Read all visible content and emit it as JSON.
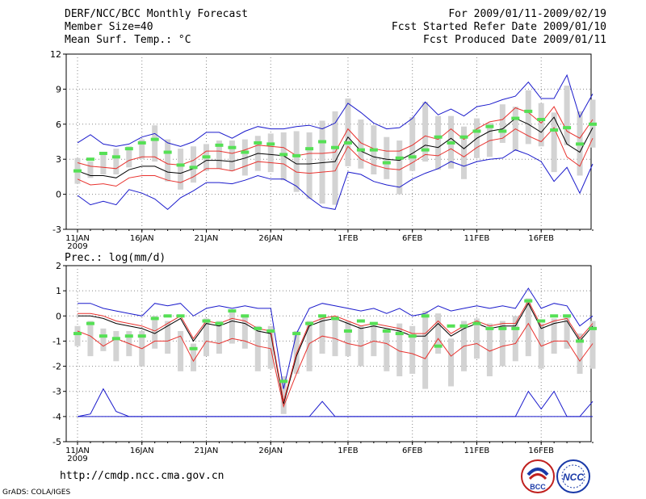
{
  "header": {
    "title": "DERF/NCC/BCC Monthly Forecast",
    "member_size": "Member Size=40",
    "variable": "Mean Surf. Temp.: °C",
    "period": "For 2009/01/11-2009/02/19",
    "started": "Fcst Started Refer Date 2009/01/10",
    "produced": "Fcst Produced Date 2009/01/11"
  },
  "footer": {
    "url": "http://cmdp.ncc.cma.gov.cn",
    "grads": "GrADS: COLA/IGES",
    "logo_bcc_text": "BCC",
    "logo_ncc_text": "NCC"
  },
  "colors": {
    "ensemble_mean": "#000000",
    "spread": "#e8322e",
    "envelope": "#1a1acc",
    "member_box": "#d3d3d3",
    "observed": "#55e055",
    "grid": "#888888"
  },
  "chart_data": [
    {
      "type": "line",
      "title": "Mean Surf. Temp.: °C",
      "x_start_label": "11JAN",
      "x_year_label": "2009",
      "x_tick_labels": [
        "11JAN",
        "16JAN",
        "21JAN",
        "26JAN",
        "1FEB",
        "6FEB",
        "11FEB",
        "16FEB"
      ],
      "x_tick_days": [
        0,
        5,
        10,
        15,
        21,
        26,
        31,
        36
      ],
      "ylim": [
        -3,
        12
      ],
      "y_ticks": [
        -3,
        0,
        3,
        6,
        9,
        12
      ],
      "days": 40,
      "series": [
        {
          "name": "ensemble mean",
          "values": [
            2.0,
            1.6,
            1.6,
            1.4,
            2.1,
            2.4,
            2.4,
            1.9,
            1.8,
            2.2,
            2.9,
            2.9,
            2.8,
            3.1,
            3.5,
            3.4,
            3.3,
            2.6,
            2.6,
            2.7,
            2.8,
            4.9,
            3.7,
            3.2,
            3.0,
            2.9,
            3.5,
            4.2,
            4.0,
            4.8,
            3.9,
            4.8,
            5.4,
            5.6,
            6.5,
            6.0,
            5.3,
            6.6,
            4.3,
            3.6,
            5.7
          ]
        },
        {
          "name": "upper spread",
          "values": [
            2.7,
            2.4,
            2.3,
            2.2,
            2.9,
            3.2,
            3.2,
            2.6,
            2.5,
            2.9,
            3.7,
            3.7,
            3.5,
            3.8,
            4.2,
            4.1,
            4.0,
            3.3,
            3.5,
            3.5,
            3.6,
            5.6,
            4.4,
            3.9,
            3.7,
            3.7,
            4.2,
            5.0,
            4.7,
            5.6,
            4.7,
            5.6,
            6.2,
            6.4,
            7.4,
            7.0,
            6.1,
            7.5,
            5.4,
            4.8,
            6.4
          ]
        },
        {
          "name": "lower spread",
          "values": [
            1.3,
            0.8,
            0.9,
            0.7,
            1.4,
            1.6,
            1.6,
            1.2,
            1.0,
            1.5,
            2.2,
            2.2,
            2.0,
            2.4,
            2.8,
            2.7,
            2.6,
            1.9,
            1.8,
            1.9,
            2.0,
            4.1,
            3.0,
            2.5,
            2.2,
            2.1,
            2.7,
            3.4,
            3.3,
            3.9,
            3.2,
            4.0,
            4.6,
            4.8,
            5.6,
            5.0,
            4.5,
            5.7,
            3.2,
            2.4,
            4.8
          ]
        },
        {
          "name": "upper envelope",
          "values": [
            4.4,
            5.1,
            4.3,
            4.1,
            4.3,
            4.9,
            5.2,
            4.4,
            4.1,
            4.5,
            5.3,
            5.3,
            4.8,
            5.4,
            5.8,
            5.6,
            5.6,
            5.8,
            5.9,
            5.6,
            6.1,
            7.8,
            7.0,
            6.1,
            5.6,
            5.7,
            6.5,
            7.9,
            6.8,
            7.3,
            6.7,
            7.5,
            7.7,
            8.1,
            8.4,
            9.6,
            8.2,
            8.2,
            10.2,
            6.6,
            8.6
          ]
        },
        {
          "name": "lower envelope",
          "values": [
            -0.1,
            -0.9,
            -0.6,
            -0.9,
            0.4,
            0.1,
            -0.4,
            -1.3,
            -0.3,
            0.3,
            1.0,
            1.0,
            0.9,
            1.2,
            1.6,
            1.3,
            1.3,
            0.7,
            -0.3,
            -1.1,
            -1.3,
            1.9,
            1.7,
            1.1,
            0.8,
            0.6,
            1.3,
            1.8,
            2.2,
            2.8,
            2.4,
            2.8,
            3.0,
            3.1,
            3.8,
            3.4,
            2.8,
            1.1,
            2.3,
            0.1,
            2.6
          ]
        }
      ],
      "member_boxes": [
        [
          0.9,
          3.1
        ],
        [
          1.4,
          2.8
        ],
        [
          1.7,
          3.4
        ],
        [
          1.7,
          3.9
        ],
        [
          2.3,
          4.1
        ],
        [
          3.0,
          4.7
        ],
        [
          2.8,
          5.9
        ],
        [
          1.1,
          4.7
        ],
        [
          0.4,
          3.9
        ],
        [
          1.0,
          4.1
        ],
        [
          2.0,
          4.3
        ],
        [
          2.2,
          4.6
        ],
        [
          2.0,
          4.6
        ],
        [
          1.6,
          4.7
        ],
        [
          2.0,
          5.0
        ],
        [
          1.9,
          5.2
        ],
        [
          1.2,
          5.3
        ],
        [
          0.2,
          5.4
        ],
        [
          -0.4,
          5.3
        ],
        [
          -0.8,
          6.3
        ],
        [
          -0.9,
          7.1
        ],
        [
          2.4,
          8.2
        ],
        [
          2.2,
          6.4
        ],
        [
          1.7,
          5.9
        ],
        [
          1.3,
          4.9
        ],
        [
          0.0,
          4.6
        ],
        [
          2.0,
          6.6
        ],
        [
          2.8,
          7.9
        ],
        [
          2.1,
          6.7
        ],
        [
          2.2,
          6.7
        ],
        [
          1.3,
          5.8
        ],
        [
          3.1,
          6.5
        ],
        [
          3.2,
          6.1
        ],
        [
          4.4,
          7.7
        ],
        [
          3.7,
          7.5
        ],
        [
          4.3,
          8.9
        ],
        [
          4.1,
          7.8
        ],
        [
          1.9,
          7.0
        ],
        [
          4.2,
          9.3
        ],
        [
          1.6,
          7.1
        ],
        [
          4.0,
          8.1
        ]
      ],
      "observed": [
        2.0,
        3.0,
        3.5,
        3.2,
        3.9,
        4.4,
        4.7,
        3.6,
        2.5,
        2.3,
        3.2,
        4.2,
        4.0,
        3.6,
        4.4,
        4.3,
        3.4,
        3.3,
        3.9,
        4.5,
        4.0,
        4.4,
        3.8,
        3.8,
        2.7,
        3.1,
        3.2,
        3.8,
        4.9,
        4.4,
        4.9,
        5.4,
        5.8,
        5.4,
        6.5,
        7.1,
        6.4,
        5.5,
        5.7,
        4.3,
        6.0
      ]
    },
    {
      "type": "line",
      "title": "Prec.: log(mm/d)",
      "x_start_label": "11JAN",
      "x_year_label": "2009",
      "x_tick_labels": [
        "11JAN",
        "16JAN",
        "21JAN",
        "26JAN",
        "1FEB",
        "6FEB",
        "11FEB",
        "16FEB"
      ],
      "x_tick_days": [
        0,
        5,
        10,
        15,
        21,
        26,
        31,
        36
      ],
      "ylim": [
        -5,
        2
      ],
      "y_ticks": [
        -5,
        -4,
        -3,
        -2,
        -1,
        0,
        1,
        2
      ],
      "days": 40,
      "series": [
        {
          "name": "ensemble mean",
          "values": [
            0.0,
            0.0,
            -0.1,
            -0.3,
            -0.4,
            -0.5,
            -0.7,
            -0.4,
            -0.1,
            -1.0,
            -0.3,
            -0.4,
            -0.2,
            -0.3,
            -0.6,
            -0.7,
            -3.5,
            -1.6,
            -0.4,
            -0.2,
            -0.1,
            -0.3,
            -0.5,
            -0.4,
            -0.5,
            -0.6,
            -0.8,
            -0.8,
            -0.3,
            -0.8,
            -0.5,
            -0.3,
            -0.5,
            -0.4,
            -0.4,
            0.5,
            -0.5,
            -0.3,
            -0.2,
            -1.0,
            -0.4
          ]
        },
        {
          "name": "upper spread",
          "values": [
            0.1,
            0.1,
            0.0,
            -0.2,
            -0.3,
            -0.4,
            -0.6,
            -0.3,
            0.0,
            -0.9,
            -0.2,
            -0.3,
            -0.1,
            -0.2,
            -0.5,
            -0.6,
            -3.4,
            -1.5,
            -0.3,
            -0.1,
            0.0,
            -0.2,
            -0.4,
            -0.3,
            -0.4,
            -0.5,
            -0.7,
            -0.7,
            -0.2,
            -0.7,
            -0.4,
            -0.2,
            -0.4,
            -0.3,
            -0.3,
            0.6,
            -0.4,
            -0.2,
            -0.1,
            -0.9,
            -0.3
          ]
        },
        {
          "name": "lower spread",
          "values": [
            -0.6,
            -0.8,
            -1.2,
            -0.9,
            -1.1,
            -1.3,
            -1.0,
            -1.0,
            -0.8,
            -1.8,
            -1.0,
            -1.1,
            -0.9,
            -1.0,
            -1.2,
            -1.3,
            -3.6,
            -2.3,
            -1.1,
            -0.8,
            -0.9,
            -1.1,
            -1.2,
            -1.0,
            -1.1,
            -1.4,
            -1.5,
            -1.7,
            -0.9,
            -1.6,
            -1.2,
            -1.1,
            -1.4,
            -1.2,
            -1.1,
            -0.3,
            -1.2,
            -1.0,
            -1.0,
            -1.8,
            -1.1
          ]
        },
        {
          "name": "upper envelope",
          "values": [
            0.5,
            0.5,
            0.3,
            0.2,
            0.1,
            0.0,
            0.5,
            0.4,
            0.5,
            0.0,
            0.3,
            0.4,
            0.3,
            0.4,
            0.3,
            0.3,
            -2.9,
            -0.7,
            0.3,
            0.5,
            0.4,
            0.3,
            0.2,
            0.3,
            0.1,
            0.3,
            0.0,
            0.1,
            0.4,
            0.2,
            0.3,
            0.4,
            0.3,
            0.4,
            0.3,
            1.1,
            0.3,
            0.5,
            0.4,
            -0.4,
            0.0
          ]
        },
        {
          "name": "lower envelope",
          "values": [
            -4.0,
            -3.9,
            -2.9,
            -3.8,
            -4.0,
            -4.0,
            -4.0,
            -4.0,
            -4.0,
            -4.0,
            -4.0,
            -4.0,
            -4.0,
            -4.0,
            -4.0,
            -4.0,
            -4.0,
            -4.0,
            -4.0,
            -3.4,
            -4.0,
            -4.0,
            -4.0,
            -4.0,
            -4.0,
            -4.0,
            -4.0,
            -4.0,
            -4.0,
            -4.0,
            -4.0,
            -4.0,
            -4.0,
            -4.0,
            -4.0,
            -3.0,
            -3.7,
            -3.0,
            -4.0,
            -4.0,
            -3.4
          ]
        },
        {
          "name": "baseline",
          "values": [
            -4.0,
            -4.0,
            -4.0,
            -4.0,
            -4.0,
            -4.0,
            -4.0,
            -4.0,
            -4.0,
            -4.0,
            -4.0,
            -4.0,
            -4.0,
            -4.0,
            -4.0,
            -4.0,
            -4.0,
            -4.0,
            -4.0,
            -4.0,
            -4.0,
            -4.0,
            -4.0,
            -4.0,
            -4.0,
            -4.0,
            -4.0,
            -4.0,
            -4.0,
            -4.0,
            -4.0,
            -4.0,
            -4.0,
            -4.0,
            -4.0,
            -4.0,
            -4.0,
            -4.0,
            -4.0,
            -4.0,
            -4.0
          ]
        }
      ],
      "member_boxes": [
        [
          -1.2,
          -0.4
        ],
        [
          -1.6,
          -0.2
        ],
        [
          -1.4,
          -0.5
        ],
        [
          -1.8,
          -0.6
        ],
        [
          -1.6,
          -0.6
        ],
        [
          -2.0,
          -0.6
        ],
        [
          -1.3,
          0.0
        ],
        [
          -1.5,
          -0.2
        ],
        [
          -2.2,
          -0.6
        ],
        [
          -2.2,
          -1.1
        ],
        [
          -1.6,
          -0.1
        ],
        [
          -1.5,
          -0.2
        ],
        [
          -1.1,
          0.2
        ],
        [
          -1.3,
          0.0
        ],
        [
          -2.2,
          -0.4
        ],
        [
          -2.1,
          -0.4
        ],
        [
          -3.9,
          -2.4
        ],
        [
          -2.3,
          -0.6
        ],
        [
          -2.2,
          -0.2
        ],
        [
          -1.5,
          0.0
        ],
        [
          -1.6,
          -0.1
        ],
        [
          -1.6,
          -0.2
        ],
        [
          -2.0,
          -0.4
        ],
        [
          -1.6,
          -0.3
        ],
        [
          -2.2,
          -0.5
        ],
        [
          -2.4,
          -0.3
        ],
        [
          -2.3,
          -0.4
        ],
        [
          -2.9,
          0.2
        ],
        [
          -1.5,
          0.1
        ],
        [
          -2.8,
          -0.9
        ],
        [
          -2.2,
          -0.2
        ],
        [
          -1.7,
          -0.1
        ],
        [
          -2.4,
          -0.3
        ],
        [
          -2.0,
          -0.2
        ],
        [
          -1.8,
          0.0
        ],
        [
          -1.6,
          0.7
        ],
        [
          -2.1,
          -0.3
        ],
        [
          -1.5,
          -0.1
        ],
        [
          -1.3,
          0.0
        ],
        [
          -2.3,
          -0.7
        ],
        [
          -2.1,
          -0.2
        ]
      ],
      "observed": [
        -0.7,
        -0.3,
        -0.8,
        -0.9,
        -0.8,
        -0.8,
        -0.1,
        0.0,
        0.0,
        -1.3,
        -0.2,
        -0.3,
        0.2,
        0.0,
        -0.5,
        -0.6,
        -2.6,
        -0.7,
        -0.3,
        0.0,
        -0.1,
        -0.6,
        -0.2,
        -0.3,
        -0.6,
        -0.7,
        -0.8,
        0.0,
        -1.2,
        -0.4,
        -0.4,
        -0.3,
        -0.5,
        -0.5,
        -0.5,
        0.6,
        -0.2,
        0.0,
        0.0,
        -1.0,
        -0.5
      ]
    }
  ]
}
